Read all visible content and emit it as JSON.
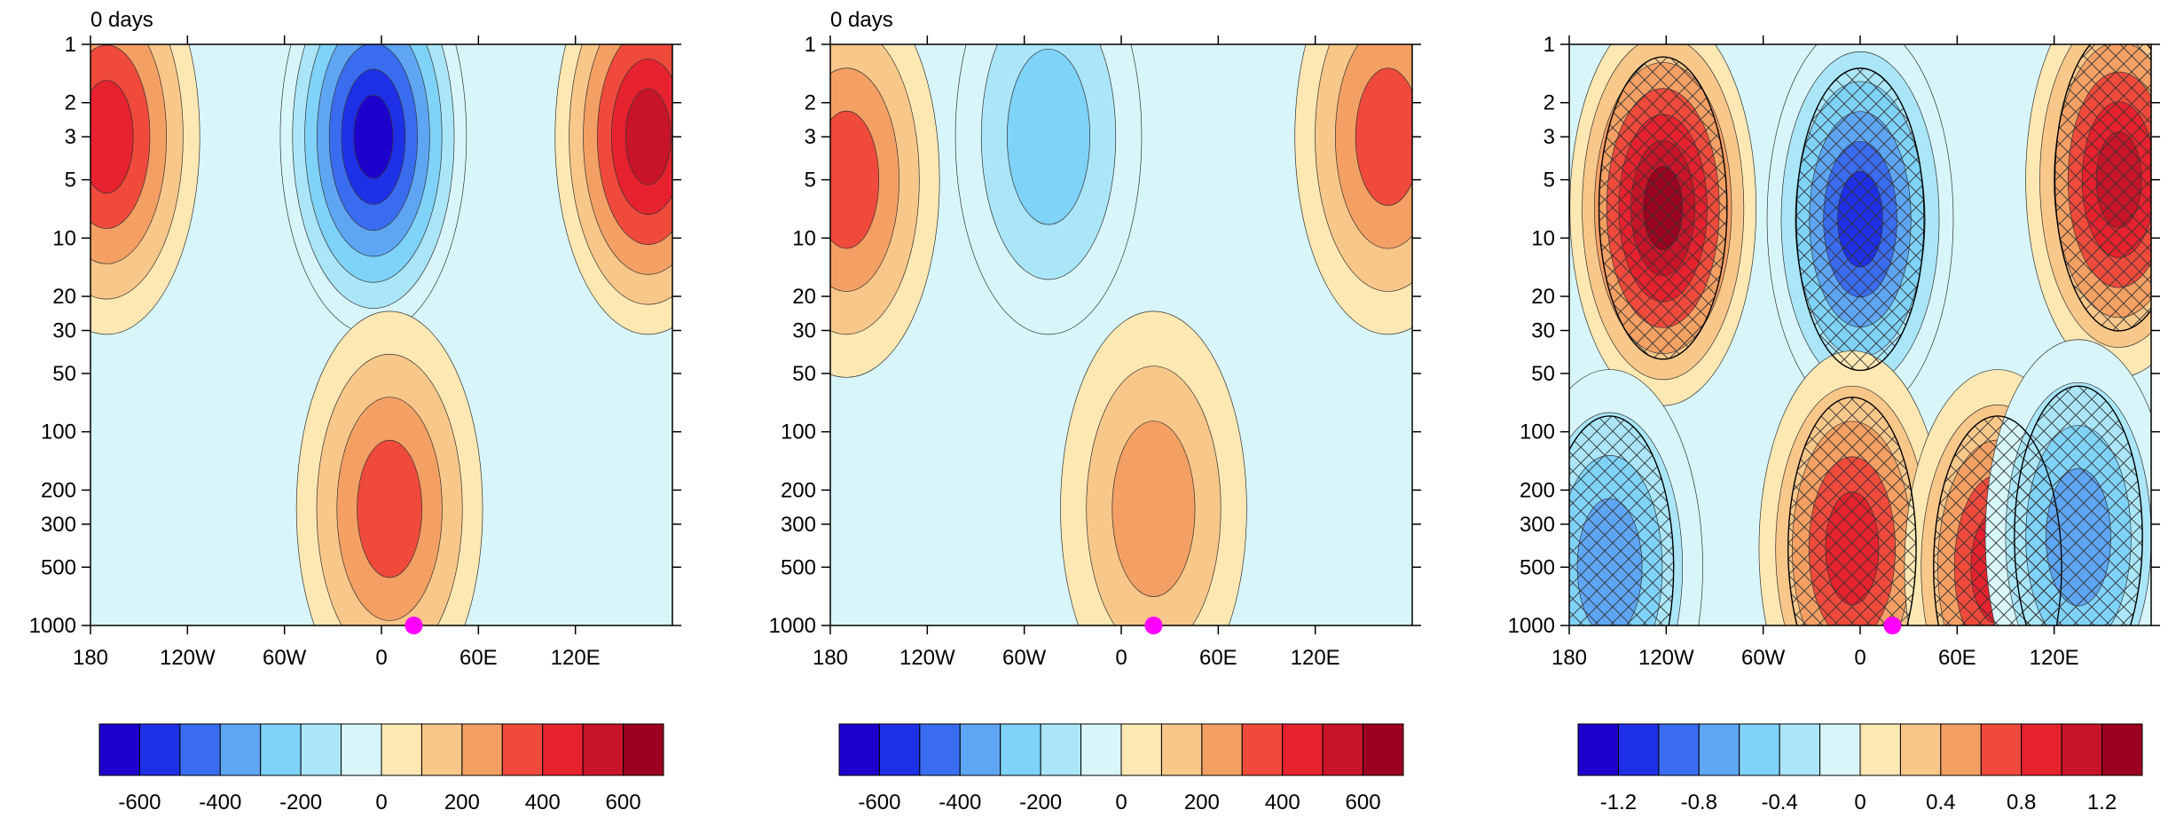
{
  "figure": {
    "panels": [
      {
        "title": "0 days"
      },
      {
        "title": "0 days"
      },
      {
        "title": ""
      }
    ]
  },
  "chart_data": [
    {
      "type": "heatmap",
      "title": "0 days",
      "x_ticks": [
        "180",
        "120W",
        "60W",
        "0",
        "60E",
        "120E"
      ],
      "x_values": [
        -180,
        -120,
        -60,
        0,
        60,
        120
      ],
      "xlim": [
        -180,
        180
      ],
      "y_ticks": [
        "1",
        "2",
        "3",
        "5",
        "10",
        "20",
        "30",
        "50",
        "100",
        "200",
        "300",
        "500",
        "1000"
      ],
      "y_values": [
        1,
        2,
        3,
        5,
        10,
        20,
        30,
        50,
        100,
        200,
        300,
        500,
        1000
      ],
      "ylim": [
        1000,
        1
      ],
      "y_scale": "log",
      "marker": {
        "x": 20,
        "y": 1000,
        "color": "#ff00ff"
      },
      "colorbar": {
        "levels": [
          -700,
          -600,
          -500,
          -400,
          -300,
          -200,
          -100,
          0,
          100,
          200,
          300,
          400,
          500,
          600,
          700
        ],
        "labels": [
          "-600",
          "-400",
          "-200",
          "0",
          "200",
          "400",
          "600"
        ],
        "label_values": [
          -600,
          -400,
          -200,
          0,
          200,
          400,
          600
        ]
      },
      "features": [
        {
          "type": "positive",
          "peak": 500,
          "x": -170,
          "y": 3
        },
        {
          "type": "negative",
          "peak": -700,
          "x": -5,
          "y": 3
        },
        {
          "type": "positive",
          "peak": 600,
          "x": 165,
          "y": 3
        },
        {
          "type": "positive",
          "peak": 350,
          "x": 5,
          "y": 250
        }
      ]
    },
    {
      "type": "heatmap",
      "title": "0 days",
      "x_ticks": [
        "180",
        "120W",
        "60W",
        "0",
        "60E",
        "120E"
      ],
      "x_values": [
        -180,
        -120,
        -60,
        0,
        60,
        120
      ],
      "xlim": [
        -180,
        180
      ],
      "y_ticks": [
        "1",
        "2",
        "3",
        "5",
        "10",
        "20",
        "30",
        "50",
        "100",
        "200",
        "300",
        "500",
        "1000"
      ],
      "y_values": [
        1,
        2,
        3,
        5,
        10,
        20,
        30,
        50,
        100,
        200,
        300,
        500,
        1000
      ],
      "ylim": [
        1000,
        1
      ],
      "y_scale": "log",
      "marker": {
        "x": 20,
        "y": 1000,
        "color": "#ff00ff"
      },
      "colorbar": {
        "levels": [
          -700,
          -600,
          -500,
          -400,
          -300,
          -200,
          -100,
          0,
          100,
          200,
          300,
          400,
          500,
          600,
          700
        ],
        "labels": [
          "-600",
          "-400",
          "-200",
          "0",
          "200",
          "400",
          "600"
        ],
        "label_values": [
          -600,
          -400,
          -200,
          0,
          200,
          400,
          600
        ]
      },
      "features": [
        {
          "type": "positive",
          "peak": 400,
          "x": -170,
          "y": 5
        },
        {
          "type": "negative",
          "peak": -300,
          "x": -45,
          "y": 3
        },
        {
          "type": "positive",
          "peak": 300,
          "x": 20,
          "y": 250
        },
        {
          "type": "positive",
          "peak": 400,
          "x": 165,
          "y": 3
        }
      ]
    },
    {
      "type": "heatmap",
      "title": "",
      "x_ticks": [
        "180",
        "120W",
        "60W",
        "0",
        "60E",
        "120E"
      ],
      "x_values": [
        -180,
        -120,
        -60,
        0,
        60,
        120
      ],
      "xlim": [
        -180,
        180
      ],
      "y_ticks": [
        "1",
        "2",
        "3",
        "5",
        "10",
        "20",
        "30",
        "50",
        "100",
        "200",
        "300",
        "500",
        "1000"
      ],
      "y_values": [
        1,
        2,
        3,
        5,
        10,
        20,
        30,
        50,
        100,
        200,
        300,
        500,
        1000
      ],
      "ylim": [
        1000,
        1
      ],
      "y_scale": "log",
      "marker": {
        "x": 20,
        "y": 1000,
        "color": "#ff00ff"
      },
      "hatching": "significant regions",
      "colorbar": {
        "levels": [
          -1.4,
          -1.2,
          -1.0,
          -0.8,
          -0.6,
          -0.4,
          -0.2,
          0,
          0.2,
          0.4,
          0.6,
          0.8,
          1.0,
          1.2,
          1.4
        ],
        "labels": [
          "-1.2",
          "-0.8",
          "-0.4",
          "0",
          "0.4",
          "0.8",
          "1.2"
        ],
        "label_values": [
          -1.2,
          -0.8,
          -0.4,
          0,
          0.4,
          0.8,
          1.2
        ]
      },
      "features": [
        {
          "type": "positive",
          "peak": 1.4,
          "x": -122,
          "y": 7
        },
        {
          "type": "negative",
          "peak": -1.2,
          "x": 0,
          "y": 8
        },
        {
          "type": "positive",
          "peak": 1.2,
          "x": 160,
          "y": 5
        },
        {
          "type": "negative",
          "peak": -0.8,
          "x": -155,
          "y": 500
        },
        {
          "type": "positive",
          "peak": 1.0,
          "x": -5,
          "y": 400
        },
        {
          "type": "positive",
          "peak": 1.0,
          "x": 85,
          "y": 500
        },
        {
          "type": "negative",
          "peak": -0.8,
          "x": 135,
          "y": 350
        }
      ]
    }
  ],
  "colors": {
    "palette": [
      "#1e00cc",
      "#1e30e6",
      "#3a6cf0",
      "#5ea6f4",
      "#7fd2f8",
      "#aae6f8",
      "#d8f6fa",
      "#fefce6",
      "#fde8b4",
      "#f8c78a",
      "#f4a064",
      "#ef4a3c",
      "#e5222e",
      "#c81428",
      "#9c0020"
    ],
    "marker": "#ff00ff"
  }
}
